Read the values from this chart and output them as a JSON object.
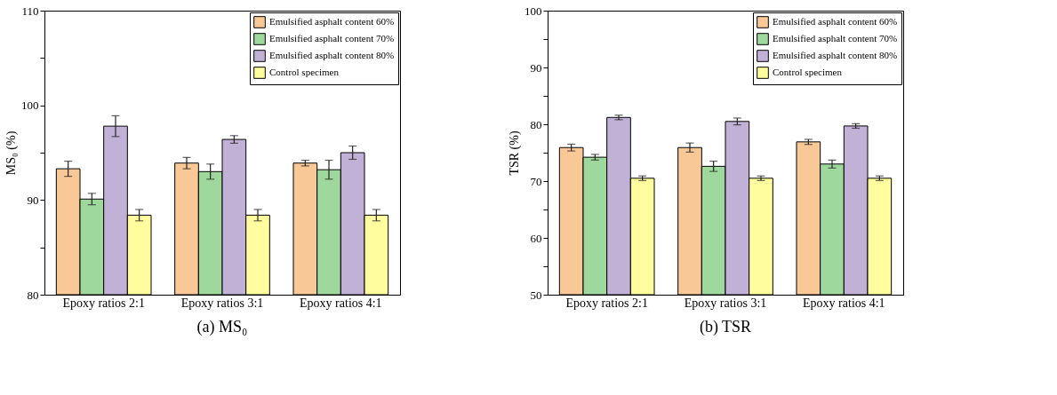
{
  "chart_data": [
    {
      "type": "bar",
      "title": "(a) MS₀",
      "ylabel": "MS₀ (%)",
      "categories": [
        "Epoxy ratios 2:1",
        "Epoxy ratios 3:1",
        "Epoxy ratios 4:1"
      ],
      "series": [
        {
          "name": "Emulsified asphalt content 60%",
          "color": "#f9c897",
          "values": [
            93.3,
            93.9,
            93.9
          ],
          "errors": [
            0.8,
            0.6,
            0.3
          ]
        },
        {
          "name": "Emulsified asphalt content 70%",
          "color": "#9fd89d",
          "values": [
            90.1,
            93.0,
            93.2
          ],
          "errors": [
            0.6,
            0.8,
            1.0
          ]
        },
        {
          "name": "Emulsified asphalt content 80%",
          "color": "#c2b1d6",
          "values": [
            97.8,
            96.4,
            95.0
          ],
          "errors": [
            1.1,
            0.4,
            0.7
          ]
        },
        {
          "name": "Control specimen",
          "color": "#fffd9d",
          "values": [
            88.4,
            88.4,
            88.4
          ],
          "errors": [
            0.6,
            0.6,
            0.6
          ]
        }
      ],
      "ylim": [
        80,
        110
      ],
      "yticks": [
        80,
        {
          "value": 85,
          "label": null
        },
        90,
        {
          "value": 95,
          "label": null
        },
        100,
        {
          "value": 105,
          "label": null
        },
        110
      ],
      "grid": false,
      "legend": "top right"
    },
    {
      "type": "bar",
      "title": "(b) TSR",
      "ylabel": "TSR (%)",
      "categories": [
        "Epoxy ratios 2:1",
        "Epoxy ratios 3:1",
        "Epoxy ratios 4:1"
      ],
      "series": [
        {
          "name": "Emulsified asphalt content 60%",
          "color": "#f9c897",
          "values": [
            75.9,
            75.9,
            76.9
          ],
          "errors": [
            0.6,
            0.8,
            0.45
          ]
        },
        {
          "name": "Emulsified asphalt content 70%",
          "color": "#9fd89d",
          "values": [
            74.2,
            72.6,
            73.0
          ],
          "errors": [
            0.5,
            0.9,
            0.7
          ]
        },
        {
          "name": "Emulsified asphalt content 80%",
          "color": "#c2b1d6",
          "values": [
            81.2,
            80.5,
            79.7
          ],
          "errors": [
            0.4,
            0.6,
            0.4
          ]
        },
        {
          "name": "Control specimen",
          "color": "#fffd9d",
          "values": [
            70.5,
            70.5,
            70.5
          ],
          "errors": [
            0.4,
            0.4,
            0.4
          ]
        }
      ],
      "ylim": [
        50,
        100
      ],
      "yticks": [
        50,
        {
          "value": 55,
          "label": null
        },
        60,
        {
          "value": 65,
          "label": null
        },
        70,
        {
          "value": 75,
          "label": null
        },
        80,
        {
          "value": 85,
          "label": null
        },
        90,
        {
          "value": 95,
          "label": null
        },
        100
      ],
      "grid": false,
      "legend": "top right"
    }
  ]
}
